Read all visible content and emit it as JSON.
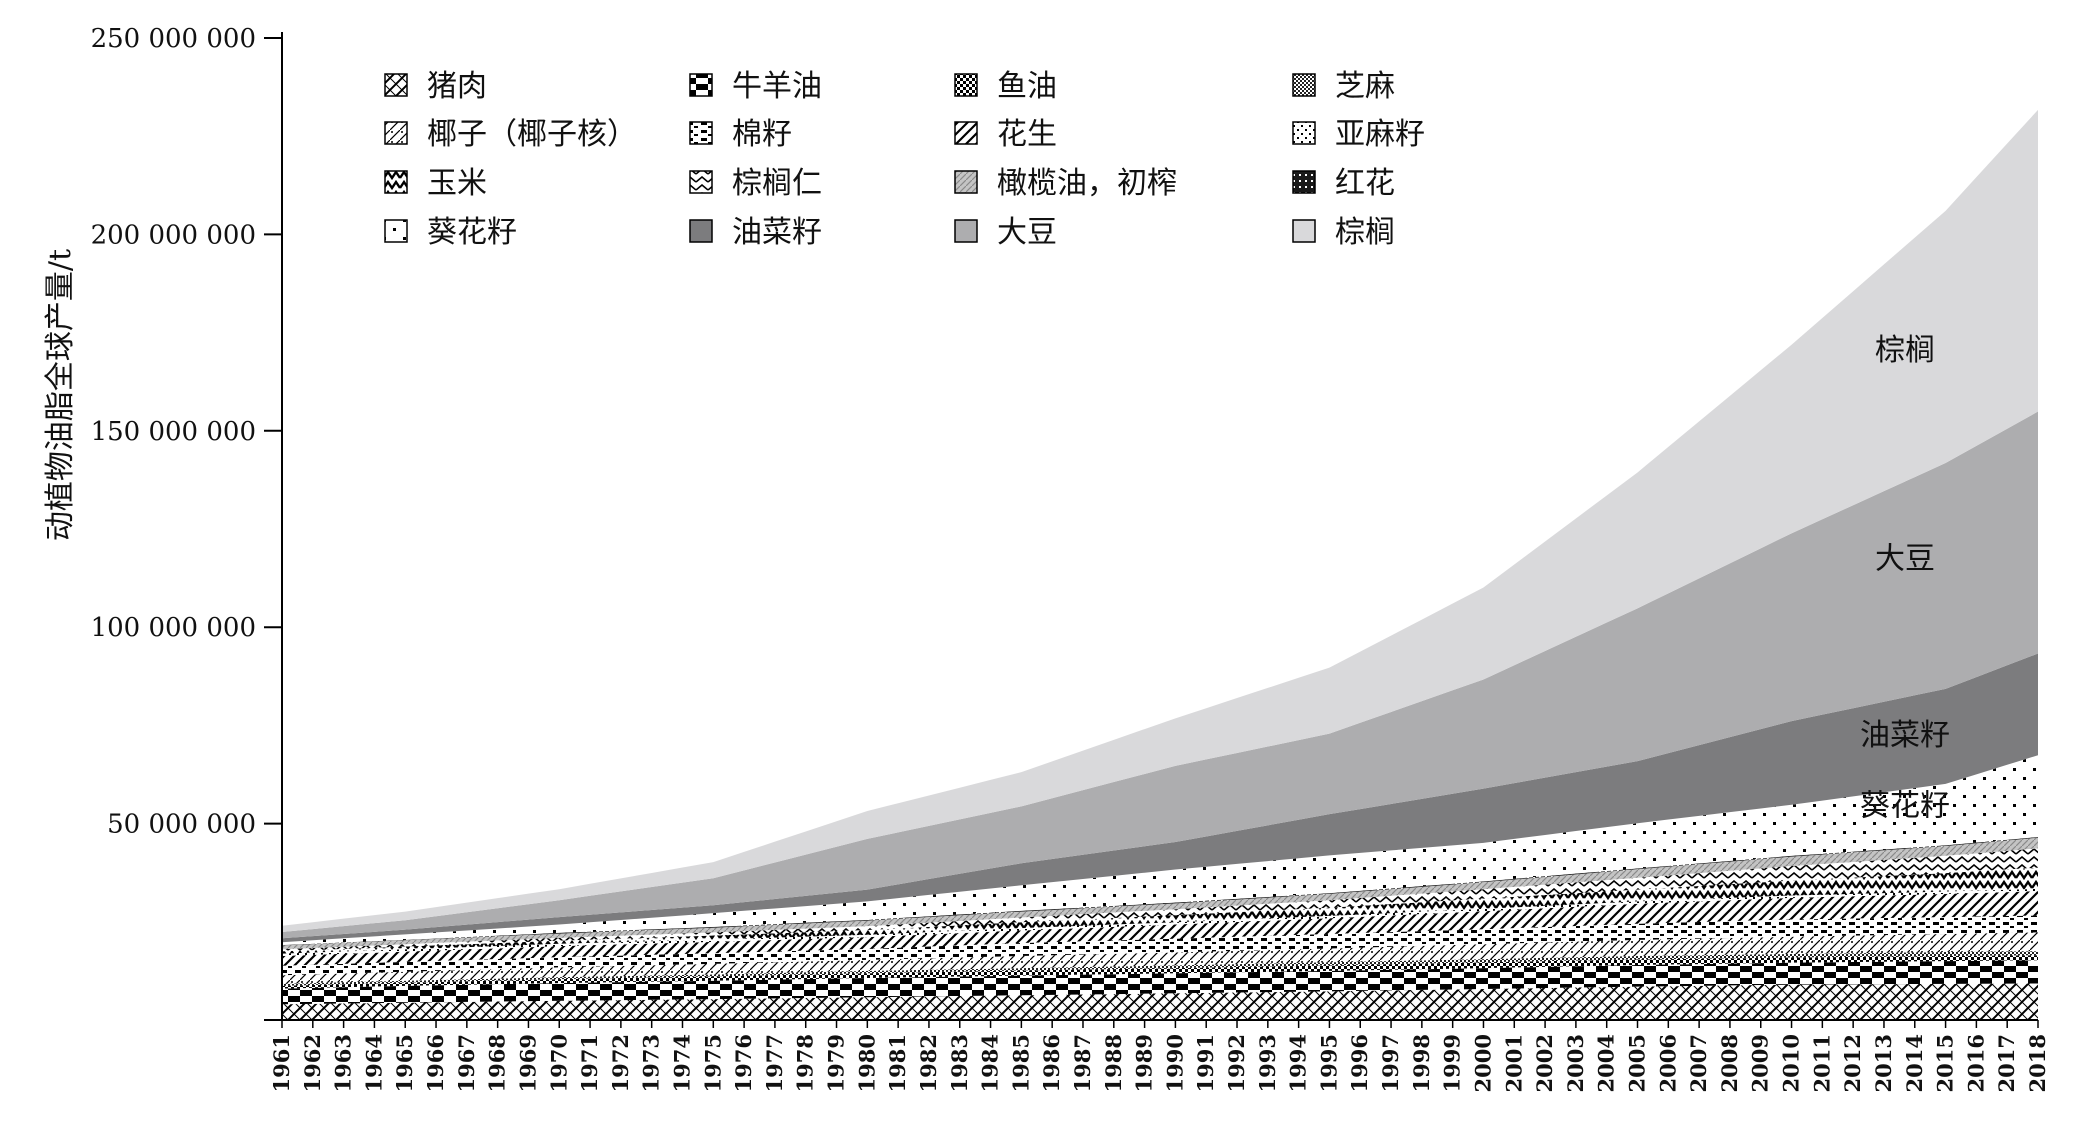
{
  "chart_data": {
    "type": "area",
    "stacked": true,
    "title": "",
    "xlabel": "",
    "ylabel": "动植物油脂全球产量/t",
    "ylim": [
      0,
      250000000
    ],
    "yticks": [
      {
        "value": 0,
        "label": ""
      },
      {
        "value": 50000000,
        "label": "50 000 000"
      },
      {
        "value": 100000000,
        "label": "100 000 000"
      },
      {
        "value": 150000000,
        "label": "150 000 000"
      },
      {
        "value": 200000000,
        "label": "200 000 000"
      },
      {
        "value": 250000000,
        "label": "250 000 000"
      }
    ],
    "x": [
      1961,
      1962,
      1963,
      1964,
      1965,
      1966,
      1967,
      1968,
      1969,
      1970,
      1971,
      1972,
      1973,
      1974,
      1975,
      1976,
      1977,
      1978,
      1979,
      1980,
      1981,
      1982,
      1983,
      1984,
      1985,
      1986,
      1987,
      1988,
      1989,
      1990,
      1991,
      1992,
      1993,
      1994,
      1995,
      1996,
      1997,
      1998,
      1999,
      2000,
      2001,
      2002,
      2003,
      2004,
      2005,
      2006,
      2007,
      2008,
      2009,
      2010,
      2011,
      2012,
      2013,
      2014,
      2015,
      2016,
      2017,
      2018
    ],
    "xtick_labels": [
      "1961",
      "1962",
      "1963",
      "1964",
      "1965",
      "1966",
      "1967",
      "1968",
      "1969",
      "1970",
      "1971",
      "1972",
      "1973",
      "1974",
      "1975",
      "1976",
      "1977",
      "1978",
      "1979",
      "1980",
      "1981",
      "1982",
      "1983",
      "1984",
      "1985",
      "1986",
      "1987",
      "1988",
      "1989",
      "1990",
      "1991",
      "1992",
      "1993",
      "1994",
      "1995",
      "1996",
      "1997",
      "1998",
      "1999",
      "2000",
      "2001",
      "2002",
      "2003",
      "2004",
      "2005",
      "2006",
      "2007",
      "2008",
      "2009",
      "2010",
      "2011",
      "2012",
      "2013",
      "2014",
      "2015",
      "2016",
      "2017",
      "2018"
    ],
    "cumulative_key_years": [
      1961,
      1965,
      1970,
      1975,
      1980,
      1985,
      1990,
      1995,
      2000,
      2005,
      2010,
      2015,
      2018
    ],
    "legend_position": "top-left",
    "grid": false,
    "series": [
      {
        "name": "猪肉",
        "pattern": "pork",
        "cumulative": [
          4000000,
          4400000,
          4900000,
          5300000,
          5800000,
          6300000,
          6800000,
          7300000,
          7900000,
          8500000,
          9000000,
          9200000,
          9300000
        ]
      },
      {
        "name": "牛羊油",
        "pattern": "checker",
        "cumulative": [
          8000000,
          8700000,
          9400000,
          10000000,
          10700000,
          11300000,
          11900000,
          12500000,
          13200000,
          14000000,
          14600000,
          15000000,
          15200000
        ]
      },
      {
        "name": "鱼油",
        "pattern": "fishoil",
        "cumulative": [
          8700000,
          9500000,
          10400000,
          11100000,
          11900000,
          12600000,
          13200000,
          13900000,
          14700000,
          15400000,
          15900000,
          16300000,
          16500000
        ]
      },
      {
        "name": "芝麻",
        "pattern": "sesame",
        "cumulative": [
          9200000,
          10000000,
          10900000,
          11600000,
          12500000,
          13200000,
          13900000,
          14700000,
          15500000,
          16300000,
          16800000,
          17300000,
          17500000
        ]
      },
      {
        "name": "椰子（椰子核）",
        "pattern": "coconut",
        "cumulative": [
          11400000,
          12300000,
          13400000,
          14300000,
          15300000,
          16300000,
          17200000,
          18200000,
          19300000,
          20400000,
          21200000,
          21900000,
          22300000
        ]
      },
      {
        "name": "棉籽",
        "pattern": "cotton",
        "cumulative": [
          13800000,
          14800000,
          16000000,
          17000000,
          18100000,
          19600000,
          20700000,
          21900000,
          23100000,
          24500000,
          25600000,
          26200000,
          26600000
        ]
      },
      {
        "name": "花生",
        "pattern": "peanut",
        "cumulative": [
          16300000,
          17400000,
          18800000,
          19900000,
          21100000,
          22800000,
          24300000,
          25900000,
          27700000,
          29600000,
          31100000,
          32100000,
          32800000
        ]
      },
      {
        "name": "亚麻籽",
        "pattern": "linseed",
        "cumulative": [
          16900000,
          18000000,
          19400000,
          20500000,
          21700000,
          23400000,
          24900000,
          26500000,
          28300000,
          30200000,
          31700000,
          32700000,
          33400000
        ]
      },
      {
        "name": "玉米",
        "pattern": "corn",
        "cumulative": [
          17500000,
          18700000,
          20200000,
          21500000,
          22900000,
          24900000,
          26700000,
          28600000,
          30900000,
          33200000,
          35500000,
          37400000,
          38800000
        ]
      },
      {
        "name": "棕榈仁",
        "pattern": "palmkernel",
        "cumulative": [
          18000000,
          19300000,
          20900000,
          22300000,
          23900000,
          26100000,
          28200000,
          30500000,
          33300000,
          36200000,
          39200000,
          41800000,
          43700000
        ]
      },
      {
        "name": "橄榄油，初榨",
        "pattern": "olive",
        "cumulative": [
          19000000,
          20300000,
          22000000,
          23500000,
          25300000,
          27600000,
          29700000,
          32100000,
          35100000,
          38400000,
          41600000,
          44300000,
          46400000
        ]
      },
      {
        "name": "红花",
        "pattern": "safflower",
        "cumulative": [
          19100000,
          20400000,
          22200000,
          23700000,
          25500000,
          27800000,
          29900000,
          32300000,
          35300000,
          38600000,
          41800000,
          44500000,
          46600000
        ]
      },
      {
        "name": "葵花籽",
        "pattern": "sunflower",
        "cumulative": [
          19800000,
          21800000,
          24300000,
          27200000,
          30200000,
          34300000,
          38300000,
          41900000,
          45100000,
          50100000,
          54800000,
          60100000,
          67400000
        ]
      },
      {
        "name": "油菜籽",
        "pattern": "solid-dark",
        "cumulative": [
          20800000,
          23000000,
          26200000,
          29200000,
          33200000,
          39900000,
          45300000,
          52400000,
          58900000,
          65900000,
          76100000,
          84300000,
          93300000
        ]
      },
      {
        "name": "大豆",
        "pattern": "solid-mid",
        "cumulative": [
          22400000,
          25400000,
          30500000,
          36100000,
          46100000,
          54400000,
          64700000,
          72900000,
          86700000,
          104800000,
          123900000,
          141800000,
          154900000
        ]
      },
      {
        "name": "棕榈",
        "pattern": "solid-light",
        "cumulative": [
          24000000,
          27600000,
          33300000,
          40200000,
          53200000,
          63100000,
          76800000,
          89700000,
          110100000,
          139400000,
          171900000,
          206000000,
          231700000
        ]
      }
    ],
    "area_labels": [
      {
        "text": "棕榈",
        "series": "棕榈"
      },
      {
        "text": "大豆",
        "series": "大豆"
      },
      {
        "text": "油菜籽",
        "series": "油菜籽"
      },
      {
        "text": "葵花籽",
        "series": "葵花籽"
      }
    ]
  }
}
